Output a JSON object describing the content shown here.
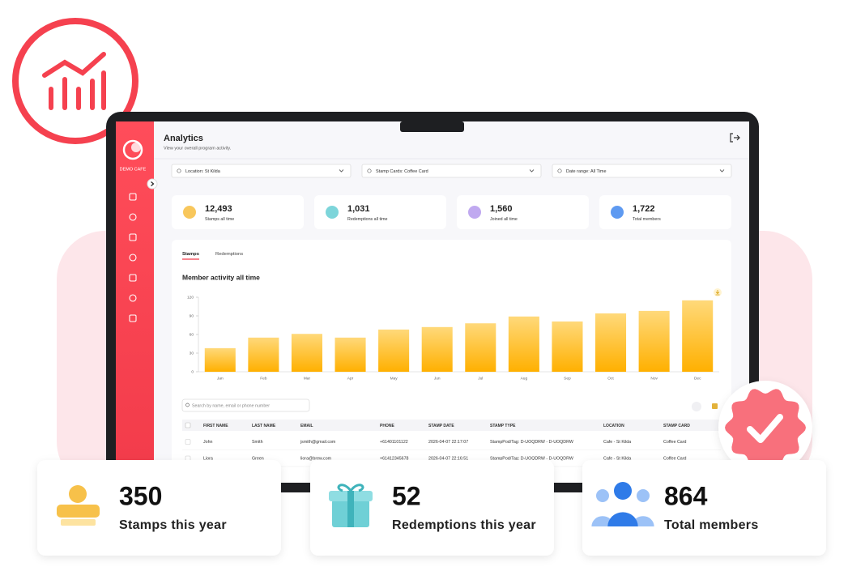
{
  "header": {
    "title": "Analytics",
    "subtitle": "View your overall program activity."
  },
  "sidebar": {
    "brand": "DEMO CAFE"
  },
  "filters": [
    "Location: St Kilda",
    "Stamp Cards: Coffee Card",
    "Date range: All Time"
  ],
  "stats": [
    {
      "value": "12,493",
      "label": "Stamps all time"
    },
    {
      "value": "1,031",
      "label": "Redemptions all time"
    },
    {
      "value": "1,560",
      "label": "Joined all time"
    },
    {
      "value": "1,722",
      "label": "Total members"
    }
  ],
  "tabs": [
    "Stamps",
    "Redemptions"
  ],
  "chart_data": {
    "type": "bar",
    "title": "Member activity all time",
    "categories": [
      "Jan",
      "Feb",
      "Mar",
      "Apr",
      "May",
      "Jun",
      "Jul",
      "Aug",
      "Sep",
      "Oct",
      "Nov",
      "Dec"
    ],
    "values": [
      38,
      55,
      61,
      55,
      68,
      72,
      78,
      89,
      81,
      94,
      98,
      115
    ],
    "color": "#ffbb22",
    "ylim": [
      0,
      120
    ],
    "yticks": [
      0,
      30,
      60,
      90,
      120
    ]
  },
  "search_placeholder": "Search by name, email or phone number",
  "table": {
    "columns": [
      "FIRST NAME",
      "LAST NAME",
      "EMAIL",
      "PHONE",
      "STAMP DATE",
      "STAMP TYPE",
      "LOCATION",
      "STAMP CARD"
    ],
    "rows": [
      [
        "John",
        "Smith",
        "jsmith@gmail.com",
        "+61401101122",
        "2026-04-07 22:17:07",
        "StampPod/Tag: D-UOQDRW - D-UOQDRW",
        "Cafe - St Kilda",
        "Coffee Card"
      ],
      [
        "Liora",
        "Green",
        "liora@brew.com",
        "+61412345678",
        "2026-04-07 22:16:51",
        "StampPod/Tag: D-UOQDRW - D-UOQDRW",
        "Cafe - St Kilda",
        "Coffee Card"
      ]
    ]
  },
  "highlights": [
    {
      "value": "350",
      "label": "Stamps this year"
    },
    {
      "value": "52",
      "label": "Redemptions this year"
    },
    {
      "value": "864",
      "label": "Total members"
    }
  ]
}
